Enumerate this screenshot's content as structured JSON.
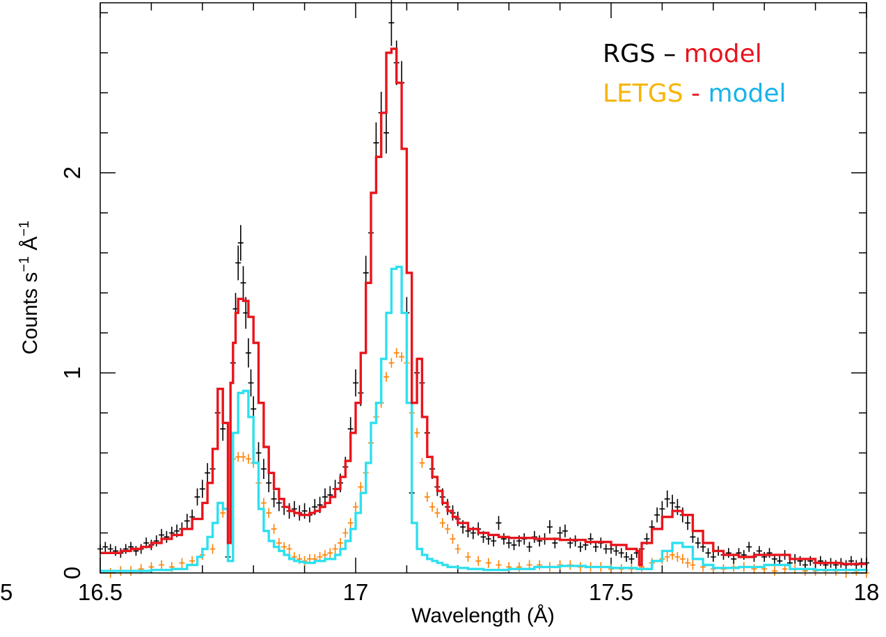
{
  "chart_data": {
    "type": "line",
    "xlabel": "Wavelength (Å)",
    "ylabel_parts": [
      "Counts s",
      "−1",
      " Å",
      "−1"
    ],
    "xlim": [
      16.5,
      18
    ],
    "ylim": [
      0,
      2.85
    ],
    "x_ticks": [
      "16.5",
      "17",
      "17.5",
      "18"
    ],
    "x_tick_values": [
      16.5,
      17,
      17.5,
      18
    ],
    "edge_tick_fragment": "5",
    "y_ticks": [
      "0",
      "1",
      "2"
    ],
    "y_tick_values": [
      0,
      1,
      2
    ],
    "legend": [
      {
        "parts": [
          {
            "text": "RGS – ",
            "color": "#000000"
          },
          {
            "text": "model",
            "color": "#e8141c"
          }
        ]
      },
      {
        "parts": [
          {
            "text": "LETGS",
            "color": "#f6b500"
          },
          {
            "text": " - ",
            "color": "#e8141c"
          },
          {
            "text": "model",
            "color": "#17b4ea"
          }
        ]
      }
    ],
    "colors": {
      "rgs_data": "#000000",
      "rgs_model": "#e8141c",
      "letgs_data": "#ff8000",
      "letgs_model": "#2ee0ee"
    },
    "series": [
      {
        "name": "RGS – model",
        "kind": "step",
        "color": "#e8141c",
        "x": [
          16.5,
          16.52,
          16.54,
          16.56,
          16.58,
          16.6,
          16.62,
          16.64,
          16.66,
          16.68,
          16.7,
          16.71,
          16.72,
          16.73,
          16.74,
          16.75,
          16.755,
          16.76,
          16.765,
          16.77,
          16.78,
          16.79,
          16.8,
          16.81,
          16.82,
          16.83,
          16.84,
          16.85,
          16.86,
          16.87,
          16.88,
          16.89,
          16.9,
          16.91,
          16.92,
          16.93,
          16.94,
          16.95,
          16.96,
          16.97,
          16.98,
          16.99,
          17.0,
          17.01,
          17.02,
          17.03,
          17.04,
          17.05,
          17.06,
          17.07,
          17.08,
          17.09,
          17.1,
          17.11,
          17.12,
          17.13,
          17.14,
          17.15,
          17.16,
          17.17,
          17.18,
          17.19,
          17.2,
          17.22,
          17.24,
          17.26,
          17.28,
          17.3,
          17.35,
          17.4,
          17.45,
          17.5,
          17.53,
          17.55,
          17.555,
          17.56,
          17.58,
          17.6,
          17.62,
          17.64,
          17.66,
          17.68,
          17.7,
          17.72,
          17.75,
          17.78,
          17.8,
          17.85,
          17.9,
          17.95,
          18.0
        ],
        "y": [
          0.1,
          0.1,
          0.11,
          0.12,
          0.13,
          0.15,
          0.17,
          0.19,
          0.22,
          0.27,
          0.35,
          0.45,
          0.62,
          0.92,
          0.75,
          0.15,
          0.95,
          1.15,
          1.3,
          1.37,
          1.36,
          1.28,
          1.15,
          0.85,
          0.63,
          0.5,
          0.42,
          0.37,
          0.33,
          0.31,
          0.3,
          0.29,
          0.29,
          0.3,
          0.31,
          0.33,
          0.35,
          0.38,
          0.42,
          0.48,
          0.56,
          0.7,
          0.85,
          1.1,
          1.45,
          1.9,
          2.08,
          2.3,
          2.6,
          2.62,
          2.45,
          2.12,
          1.5,
          0.85,
          1.07,
          0.78,
          0.58,
          0.48,
          0.41,
          0.35,
          0.31,
          0.28,
          0.25,
          0.22,
          0.2,
          0.19,
          0.18,
          0.175,
          0.17,
          0.165,
          0.155,
          0.14,
          0.12,
          0.11,
          0.04,
          0.15,
          0.22,
          0.28,
          0.31,
          0.29,
          0.21,
          0.15,
          0.11,
          0.09,
          0.08,
          0.09,
          0.09,
          0.07,
          0.05,
          0.045,
          0.04
        ]
      },
      {
        "name": "LETGS - model",
        "kind": "step",
        "color": "#2ee0ee",
        "x": [
          16.5,
          16.55,
          16.6,
          16.64,
          16.67,
          16.69,
          16.7,
          16.71,
          16.72,
          16.73,
          16.74,
          16.75,
          16.76,
          16.77,
          16.78,
          16.79,
          16.8,
          16.81,
          16.82,
          16.83,
          16.84,
          16.85,
          16.86,
          16.87,
          16.88,
          16.89,
          16.9,
          16.92,
          16.94,
          16.96,
          16.97,
          16.98,
          16.99,
          17.0,
          17.01,
          17.02,
          17.03,
          17.04,
          17.05,
          17.06,
          17.07,
          17.08,
          17.09,
          17.1,
          17.11,
          17.12,
          17.13,
          17.14,
          17.15,
          17.16,
          17.17,
          17.18,
          17.2,
          17.22,
          17.25,
          17.3,
          17.35,
          17.4,
          17.45,
          17.5,
          17.55,
          17.58,
          17.6,
          17.62,
          17.64,
          17.66,
          17.68,
          17.7,
          17.75,
          17.8,
          17.85,
          17.9,
          18.0
        ],
        "y": [
          0.01,
          0.01,
          0.015,
          0.02,
          0.04,
          0.08,
          0.12,
          0.18,
          0.25,
          0.35,
          0.32,
          0.06,
          0.7,
          0.9,
          0.91,
          0.78,
          0.55,
          0.32,
          0.21,
          0.16,
          0.13,
          0.11,
          0.09,
          0.07,
          0.06,
          0.055,
          0.05,
          0.06,
          0.07,
          0.09,
          0.12,
          0.16,
          0.22,
          0.3,
          0.4,
          0.55,
          0.75,
          0.85,
          1.07,
          1.3,
          1.52,
          1.53,
          1.3,
          0.85,
          0.25,
          0.12,
          0.09,
          0.07,
          0.06,
          0.05,
          0.04,
          0.03,
          0.025,
          0.02,
          0.015,
          0.02,
          0.03,
          0.035,
          0.03,
          0.025,
          0.02,
          0.06,
          0.11,
          0.15,
          0.13,
          0.07,
          0.04,
          0.025,
          0.03,
          0.04,
          0.02,
          0.015,
          0.01
        ]
      },
      {
        "name": "RGS",
        "kind": "crosses",
        "color": "#000000",
        "x": [
          16.5,
          16.51,
          16.52,
          16.53,
          16.54,
          16.55,
          16.56,
          16.57,
          16.58,
          16.59,
          16.6,
          16.61,
          16.62,
          16.63,
          16.64,
          16.65,
          16.66,
          16.67,
          16.68,
          16.69,
          16.7,
          16.71,
          16.72,
          16.73,
          16.74,
          16.75,
          16.76,
          16.765,
          16.77,
          16.775,
          16.78,
          16.785,
          16.79,
          16.795,
          16.8,
          16.81,
          16.82,
          16.83,
          16.84,
          16.85,
          16.86,
          16.87,
          16.88,
          16.89,
          16.9,
          16.91,
          16.92,
          16.93,
          16.94,
          16.95,
          16.96,
          16.97,
          16.98,
          16.99,
          17.0,
          17.01,
          17.02,
          17.03,
          17.04,
          17.05,
          17.06,
          17.07,
          17.08,
          17.09,
          17.1,
          17.11,
          17.12,
          17.13,
          17.14,
          17.15,
          17.16,
          17.17,
          17.18,
          17.19,
          17.2,
          17.21,
          17.22,
          17.23,
          17.24,
          17.25,
          17.26,
          17.27,
          17.28,
          17.29,
          17.3,
          17.31,
          17.32,
          17.33,
          17.34,
          17.35,
          17.36,
          17.37,
          17.38,
          17.39,
          17.4,
          17.41,
          17.42,
          17.43,
          17.44,
          17.45,
          17.46,
          17.47,
          17.48,
          17.49,
          17.5,
          17.51,
          17.52,
          17.53,
          17.54,
          17.55,
          17.56,
          17.57,
          17.58,
          17.59,
          17.6,
          17.61,
          17.62,
          17.63,
          17.64,
          17.65,
          17.66,
          17.67,
          17.68,
          17.69,
          17.7,
          17.71,
          17.72,
          17.73,
          17.74,
          17.75,
          17.76,
          17.77,
          17.78,
          17.79,
          17.8,
          17.81,
          17.82,
          17.83,
          17.84,
          17.85,
          17.86,
          17.87,
          17.88,
          17.89,
          17.9,
          17.91,
          17.92,
          17.93,
          17.94,
          17.95,
          17.96,
          17.97,
          17.98,
          17.99,
          18.0
        ],
        "y": [
          0.12,
          0.13,
          0.12,
          0.11,
          0.1,
          0.12,
          0.13,
          0.11,
          0.12,
          0.15,
          0.14,
          0.16,
          0.19,
          0.18,
          0.2,
          0.21,
          0.22,
          0.26,
          0.28,
          0.38,
          0.42,
          0.5,
          0.52,
          0.8,
          0.72,
          0.08,
          1.05,
          1.32,
          1.55,
          1.65,
          1.45,
          1.3,
          1.1,
          0.95,
          0.82,
          0.6,
          0.52,
          0.45,
          0.37,
          0.35,
          0.33,
          0.31,
          0.32,
          0.3,
          0.31,
          0.29,
          0.33,
          0.34,
          0.38,
          0.39,
          0.42,
          0.45,
          0.53,
          0.72,
          0.95,
          0.9,
          1.5,
          1.7,
          2.15,
          2.3,
          2.2,
          2.75,
          2.55,
          2.45,
          1.3,
          0.4,
          1.0,
          0.95,
          0.7,
          0.52,
          0.43,
          0.38,
          0.33,
          0.3,
          0.27,
          0.23,
          0.21,
          0.2,
          0.22,
          0.18,
          0.17,
          0.16,
          0.25,
          0.17,
          0.15,
          0.14,
          0.16,
          0.17,
          0.13,
          0.18,
          0.16,
          0.17,
          0.23,
          0.15,
          0.2,
          0.21,
          0.15,
          0.16,
          0.13,
          0.14,
          0.17,
          0.13,
          0.15,
          0.12,
          0.12,
          0.11,
          0.1,
          0.08,
          0.07,
          0.1,
          0.12,
          0.17,
          0.23,
          0.29,
          0.32,
          0.37,
          0.35,
          0.33,
          0.29,
          0.25,
          0.18,
          0.15,
          0.13,
          0.1,
          0.08,
          0.11,
          0.09,
          0.1,
          0.07,
          0.1,
          0.09,
          0.13,
          0.08,
          0.11,
          0.08,
          0.1,
          0.07,
          0.06,
          0.09,
          0.05,
          0.07,
          0.06,
          0.04,
          0.06,
          0.05,
          0.06,
          0.04,
          0.05,
          0.04,
          0.05,
          0.04,
          0.06,
          0.04,
          0.05,
          0.05
        ]
      },
      {
        "name": "LETGS",
        "kind": "crosses",
        "color": "#ff8000",
        "x": [
          16.52,
          16.54,
          16.56,
          16.58,
          16.6,
          16.62,
          16.64,
          16.66,
          16.68,
          16.7,
          16.72,
          16.74,
          16.76,
          16.77,
          16.78,
          16.79,
          16.8,
          16.81,
          16.82,
          16.83,
          16.84,
          16.85,
          16.86,
          16.87,
          16.88,
          16.89,
          16.9,
          16.91,
          16.92,
          16.93,
          16.94,
          16.95,
          16.96,
          16.97,
          16.98,
          16.99,
          17.0,
          17.01,
          17.02,
          17.03,
          17.04,
          17.05,
          17.06,
          17.07,
          17.08,
          17.09,
          17.1,
          17.11,
          17.12,
          17.13,
          17.14,
          17.15,
          17.16,
          17.17,
          17.18,
          17.19,
          17.2,
          17.22,
          17.24,
          17.26,
          17.28,
          17.3,
          17.32,
          17.34,
          17.36,
          17.38,
          17.4,
          17.42,
          17.44,
          17.46,
          17.48,
          17.5,
          17.52,
          17.54,
          17.56,
          17.58,
          17.6,
          17.61,
          17.62,
          17.63,
          17.64,
          17.65,
          17.66,
          17.68,
          17.7,
          17.72,
          17.74,
          17.76,
          17.78,
          17.8,
          17.82,
          17.84,
          17.86,
          17.88,
          17.9,
          17.92,
          17.94,
          17.96,
          17.98,
          18.0
        ],
        "y": [
          0.0,
          0.01,
          0.01,
          0.02,
          0.03,
          0.04,
          0.03,
          0.05,
          0.06,
          0.09,
          0.12,
          0.3,
          0.57,
          0.58,
          0.58,
          0.57,
          0.55,
          0.45,
          0.35,
          0.3,
          0.22,
          0.15,
          0.13,
          0.12,
          0.08,
          0.07,
          0.06,
          0.07,
          0.07,
          0.08,
          0.09,
          0.1,
          0.12,
          0.15,
          0.2,
          0.25,
          0.33,
          0.43,
          0.5,
          0.65,
          0.78,
          0.85,
          0.98,
          1.05,
          1.1,
          1.08,
          1.05,
          0.8,
          0.7,
          0.55,
          0.38,
          0.33,
          0.3,
          0.25,
          0.22,
          0.17,
          0.12,
          0.08,
          0.06,
          0.05,
          0.04,
          0.03,
          0.03,
          0.04,
          0.04,
          0.03,
          0.04,
          0.04,
          0.03,
          0.03,
          0.03,
          0.02,
          0.02,
          0.02,
          0.03,
          0.05,
          0.07,
          0.08,
          0.09,
          0.08,
          0.07,
          0.05,
          0.04,
          0.03,
          0.02,
          0.02,
          0.03,
          0.03,
          0.02,
          0.02,
          0.01,
          0.02,
          0.02,
          0.01,
          0.01,
          0.01,
          0.01,
          0.0,
          0.01,
          0.0
        ]
      }
    ]
  }
}
